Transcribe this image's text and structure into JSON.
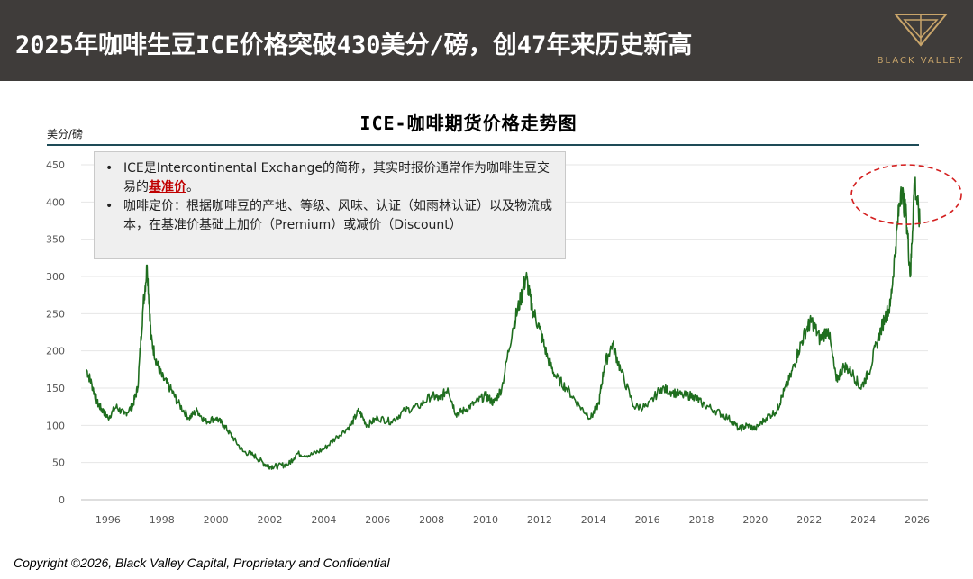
{
  "slide": {
    "title": "2025年咖啡生豆ICE价格突破430美分/磅，创47年来历史新高",
    "logo_text": "BLACK VALLEY",
    "logo_color": "#c9a56a",
    "footer": "Copyright ©2026, Black Valley Capital, Proprietary and Confidential"
  },
  "note": {
    "items": [
      {
        "before": "ICE是Intercontinental Exchange的简称，其实时报价通常作为咖啡生豆交易的",
        "highlight": "基准价",
        "after": "。"
      },
      {
        "before": "咖啡定价：根据咖啡豆的产地、等级、风味、认证（如雨林认证）以及物流成本，在基准价基础上加价（Premium）或减价（Discount）",
        "highlight": "",
        "after": ""
      }
    ],
    "highlight_color": "#c00000"
  },
  "chart_data": {
    "type": "line",
    "title": "ICE-咖啡期货价格走势图",
    "ylabel": "美分/磅",
    "xlabel": "",
    "xlim": [
      1995.0,
      2026.4
    ],
    "ylim": [
      0,
      450
    ],
    "yticks": [
      0,
      50,
      100,
      150,
      200,
      250,
      300,
      350,
      400,
      450
    ],
    "xticks": [
      1996,
      1998,
      2000,
      2002,
      2004,
      2006,
      2008,
      2010,
      2012,
      2014,
      2016,
      2018,
      2020,
      2022,
      2024,
      2026
    ],
    "grid": "horizontal",
    "line_color": "#1f6e1f",
    "highlight_ellipse_color": "#d42020",
    "series": [
      {
        "x": [
          1995.2,
          1995.4,
          1995.6,
          1995.8,
          1996.0,
          1996.3,
          1996.6,
          1996.9,
          1997.1,
          1997.3,
          1997.45,
          1997.6,
          1997.8,
          1998.0,
          1998.3,
          1998.6,
          1999.0,
          1999.3,
          1999.6,
          2000.0,
          2000.3,
          2000.6,
          2001.0,
          2001.4,
          2001.8,
          2002.0,
          2002.3,
          2002.7,
          2003.0,
          2003.5,
          2004.0,
          2004.5,
          2005.0,
          2005.3,
          2005.6,
          2006.0,
          2006.5,
          2007.0,
          2007.5,
          2008.0,
          2008.3,
          2008.6,
          2008.9,
          2009.2,
          2009.6,
          2010.0,
          2010.3,
          2010.6,
          2011.0,
          2011.3,
          2011.5,
          2011.7,
          2012.0,
          2012.3,
          2012.6,
          2013.0,
          2013.5,
          2013.9,
          2014.2,
          2014.4,
          2014.7,
          2015.0,
          2015.5,
          2016.0,
          2016.5,
          2016.9,
          2017.3,
          2017.7,
          2018.0,
          2018.5,
          2019.0,
          2019.4,
          2019.7,
          2020.0,
          2020.4,
          2020.8,
          2021.0,
          2021.3,
          2021.6,
          2021.9,
          2022.1,
          2022.4,
          2022.7,
          2023.0,
          2023.3,
          2023.6,
          2023.9,
          2024.2,
          2024.5,
          2024.8,
          2025.0,
          2025.2,
          2025.4,
          2025.6,
          2025.75,
          2025.9,
          2026.1
        ],
        "y": [
          175,
          155,
          130,
          120,
          110,
          125,
          115,
          125,
          150,
          260,
          315,
          215,
          185,
          165,
          150,
          130,
          110,
          120,
          105,
          110,
          100,
          85,
          65,
          60,
          48,
          45,
          45,
          48,
          62,
          60,
          68,
          85,
          100,
          120,
          100,
          110,
          105,
          120,
          125,
          140,
          135,
          150,
          115,
          120,
          130,
          140,
          130,
          150,
          230,
          270,
          300,
          260,
          230,
          190,
          165,
          150,
          125,
          110,
          130,
          180,
          210,
          175,
          125,
          125,
          150,
          145,
          140,
          140,
          130,
          120,
          110,
          95,
          100,
          95,
          110,
          120,
          140,
          165,
          200,
          230,
          240,
          215,
          230,
          160,
          180,
          170,
          150,
          170,
          210,
          245,
          260,
          340,
          420,
          380,
          300,
          430,
          370
        ]
      }
    ]
  }
}
